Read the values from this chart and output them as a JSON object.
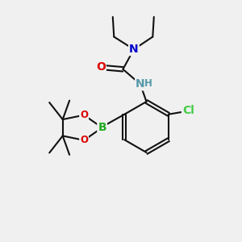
{
  "background_color": "#f0f0f0",
  "atom_colors": {
    "C": "#000000",
    "N_blue": "#0000cc",
    "N_teal": "#5599aa",
    "O": "#dd0000",
    "B": "#22aa22",
    "Cl": "#44cc44",
    "H": "#5599aa"
  },
  "bond_color": "#111111",
  "bond_width": 1.5,
  "font_size_atom": 10,
  "font_size_small": 8.5,
  "xlim": [
    0,
    10
  ],
  "ylim": [
    0,
    10
  ]
}
